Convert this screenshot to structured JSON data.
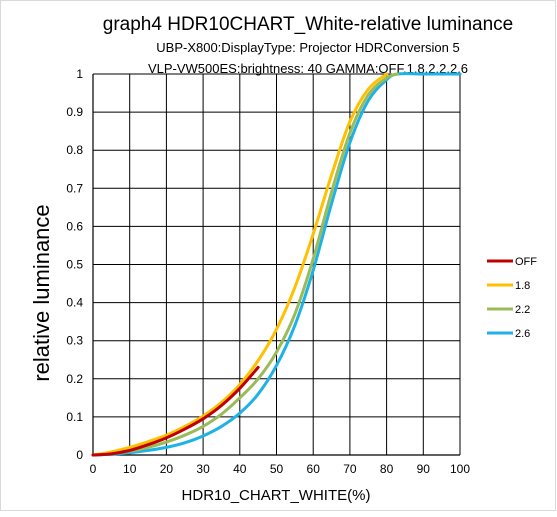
{
  "chart_data": {
    "type": "line",
    "title": "graph4 HDR10CHART_White-relative luminance",
    "subtitle_lines": [
      "UBP-X800:DisplayType: Projector HDRConversion 5",
      "VLP-VW500ES:brightness: 40 GAMMA:OFF,1.8,2.2,2.6"
    ],
    "xlabel": "HDR10_CHART_WHITE(%)",
    "ylabel": "relative luminance",
    "xlim": [
      0,
      100
    ],
    "ylim": [
      0,
      1
    ],
    "x_ticks": [
      "0",
      "10",
      "20",
      "30",
      "40",
      "50",
      "60",
      "70",
      "80",
      "90",
      "100"
    ],
    "y_ticks": [
      "0",
      "0.1",
      "0.2",
      "0.3",
      "0.4",
      "0.5",
      "0.6",
      "0.7",
      "0.8",
      "0.9",
      "1"
    ],
    "grid": true,
    "legend_position": "right",
    "series": [
      {
        "name": "OFF",
        "color": "#c00000",
        "x": [
          0,
          5,
          10,
          15,
          20,
          25,
          30,
          35,
          40,
          45
        ],
        "y": [
          0,
          0.003,
          0.012,
          0.027,
          0.045,
          0.068,
          0.095,
          0.13,
          0.175,
          0.23
        ]
      },
      {
        "name": "1.8",
        "color": "#ffc000",
        "x": [
          0,
          5,
          10,
          15,
          20,
          25,
          30,
          35,
          40,
          45,
          50,
          55,
          60,
          65,
          70,
          75,
          80
        ],
        "y": [
          0,
          0.008,
          0.02,
          0.035,
          0.052,
          0.075,
          0.102,
          0.138,
          0.185,
          0.248,
          0.33,
          0.44,
          0.58,
          0.735,
          0.875,
          0.96,
          1.0
        ]
      },
      {
        "name": "2.2",
        "color": "#9bbb59",
        "x": [
          0,
          5,
          10,
          15,
          20,
          25,
          30,
          35,
          40,
          45,
          50,
          55,
          60,
          65,
          70,
          75,
          80,
          83
        ],
        "y": [
          0,
          0.004,
          0.01,
          0.02,
          0.034,
          0.052,
          0.075,
          0.107,
          0.15,
          0.2,
          0.27,
          0.37,
          0.515,
          0.69,
          0.845,
          0.945,
          0.99,
          1.0
        ]
      },
      {
        "name": "2.6",
        "color": "#1fb2e6",
        "x": [
          0,
          5,
          10,
          15,
          20,
          25,
          30,
          35,
          40,
          45,
          50,
          55,
          60,
          65,
          70,
          75,
          80,
          83,
          90,
          100
        ],
        "y": [
          0,
          0.002,
          0.006,
          0.012,
          0.02,
          0.032,
          0.05,
          0.075,
          0.11,
          0.16,
          0.235,
          0.34,
          0.485,
          0.66,
          0.82,
          0.93,
          0.985,
          1.0,
          1.0,
          1.0
        ]
      }
    ]
  }
}
